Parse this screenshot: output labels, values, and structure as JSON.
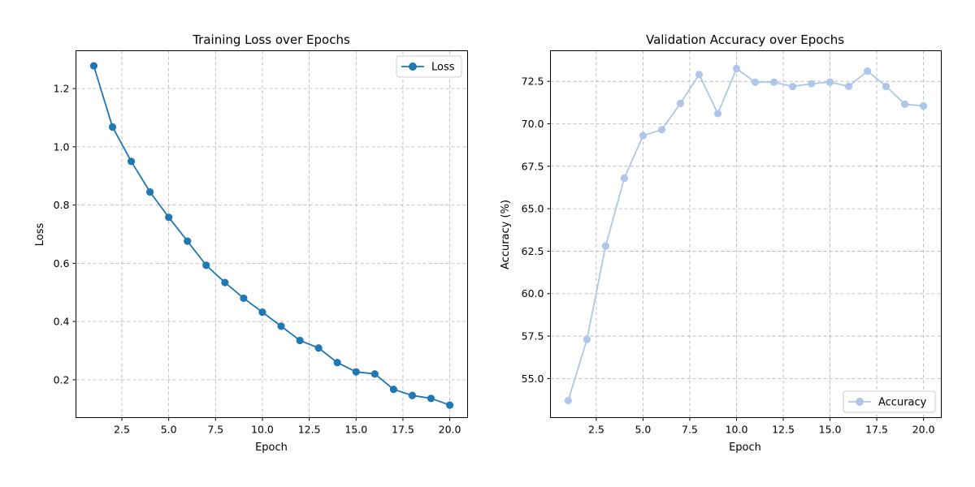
{
  "chart_data": [
    {
      "type": "line",
      "title": "Training Loss over Epochs",
      "xlabel": "Epoch",
      "ylabel": "Loss",
      "xlim": [
        0.05,
        20.95
      ],
      "ylim": [
        0.07,
        1.33
      ],
      "xticks": [
        2.5,
        5.0,
        7.5,
        10.0,
        12.5,
        15.0,
        17.5,
        20.0
      ],
      "xtick_labels": [
        "2.5",
        "5.0",
        "7.5",
        "10.0",
        "12.5",
        "15.0",
        "17.5",
        "20.0"
      ],
      "yticks": [
        0.2,
        0.4,
        0.6,
        0.8,
        1.0,
        1.2
      ],
      "ytick_labels": [
        "0.2",
        "0.4",
        "0.6",
        "0.8",
        "1.0",
        "1.2"
      ],
      "grid": true,
      "legend_position": "top-right",
      "series": [
        {
          "name": "Loss",
          "color": "#1f77b4",
          "x": [
            1,
            2,
            3,
            4,
            5,
            6,
            7,
            8,
            9,
            10,
            11,
            12,
            13,
            14,
            15,
            16,
            17,
            18,
            19,
            20
          ],
          "y": [
            1.278,
            1.068,
            0.95,
            0.845,
            0.758,
            0.676,
            0.593,
            0.534,
            0.48,
            0.432,
            0.384,
            0.335,
            0.309,
            0.259,
            0.227,
            0.22,
            0.167,
            0.146,
            0.136,
            0.113
          ]
        }
      ]
    },
    {
      "type": "line",
      "title": "Validation Accuracy over Epochs",
      "xlabel": "Epoch",
      "ylabel": "Accuracy (%)",
      "xlim": [
        0.05,
        20.95
      ],
      "ylim": [
        52.7,
        74.3
      ],
      "xticks": [
        2.5,
        5.0,
        7.5,
        10.0,
        12.5,
        15.0,
        17.5,
        20.0
      ],
      "xtick_labels": [
        "2.5",
        "5.0",
        "7.5",
        "10.0",
        "12.5",
        "15.0",
        "17.5",
        "20.0"
      ],
      "yticks": [
        55.0,
        57.5,
        60.0,
        62.5,
        65.0,
        67.5,
        70.0,
        72.5
      ],
      "ytick_labels": [
        "55.0",
        "57.5",
        "60.0",
        "62.5",
        "65.0",
        "67.5",
        "70.0",
        "72.5"
      ],
      "grid": true,
      "legend_position": "bottom-right",
      "series": [
        {
          "name": "Accuracy",
          "color": "#aec7e8",
          "x": [
            1,
            2,
            3,
            4,
            5,
            6,
            7,
            8,
            9,
            10,
            11,
            12,
            13,
            14,
            15,
            16,
            17,
            18,
            19,
            20
          ],
          "y": [
            53.7,
            57.3,
            62.8,
            66.8,
            69.3,
            69.65,
            71.2,
            72.9,
            70.6,
            73.25,
            72.45,
            72.45,
            72.2,
            72.35,
            72.45,
            72.2,
            73.1,
            72.2,
            71.15,
            71.05
          ]
        }
      ]
    }
  ]
}
